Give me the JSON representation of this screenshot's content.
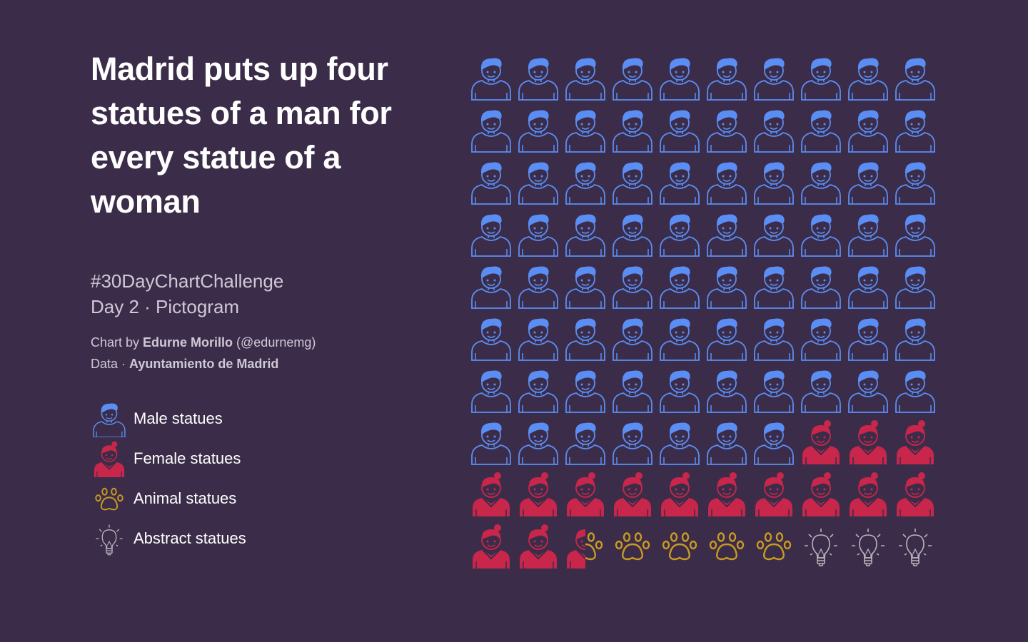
{
  "title": "Madrid puts up four statues of a man for every statue of a woman",
  "subtitle": {
    "line1": "#30DayChartChallenge",
    "line2": "Day 2 · Pictogram"
  },
  "credits": {
    "chart_prefix": "Chart by ",
    "author": "Edurne Morillo",
    "handle": " (@edurnemg)",
    "data_prefix": "Data · ",
    "source": "Ayuntamiento de Madrid"
  },
  "legend": [
    {
      "label": "Male statues",
      "icon": "male-icon",
      "color": "#5b8ef5"
    },
    {
      "label": "Female statues",
      "icon": "female-icon",
      "color": "#c9264b"
    },
    {
      "label": "Animal statues",
      "icon": "paw-icon",
      "color": "#c99a22"
    },
    {
      "label": "Abstract statues",
      "icon": "lightbulb-icon",
      "color": "#b8b4be"
    }
  ],
  "chart_data": {
    "type": "pictogram",
    "title": "Madrid puts up four statues of a man for every statue of a woman",
    "grid": {
      "rows": 10,
      "cols": 10
    },
    "unit": "percent of statues",
    "categories": [
      "Male statues",
      "Female statues",
      "Animal statues",
      "Abstract statues"
    ],
    "values": [
      77,
      15.5,
      4.5,
      3
    ],
    "colors": [
      "#5b8ef5",
      "#c9264b",
      "#c99a22",
      "#b8b4be"
    ],
    "icons": [
      "male-icon",
      "female-icon",
      "paw-icon",
      "lightbulb-icon"
    ]
  }
}
